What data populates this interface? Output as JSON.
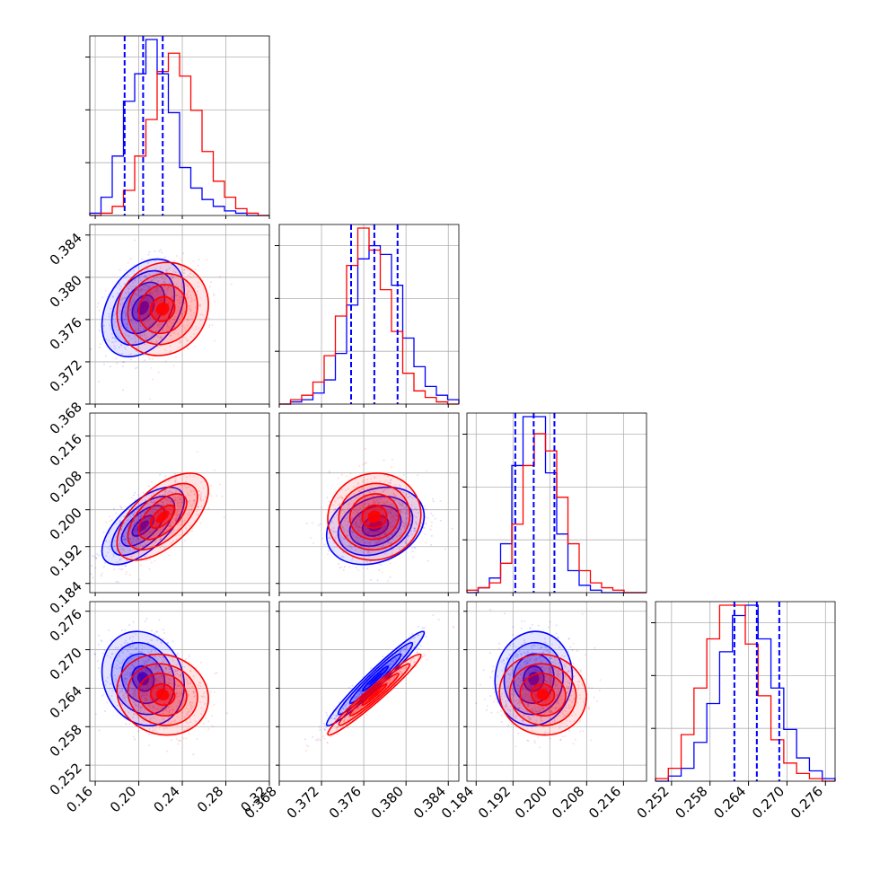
{
  "chart_data": {
    "type": "corner",
    "title": "",
    "grid": true,
    "colors": {
      "series_a": "#0000ff",
      "series_b": "#ff0000",
      "quantile_line": "#0000ff"
    },
    "series": [
      {
        "name": "",
        "color": "#0000ff"
      },
      {
        "name": "",
        "color": "#ff0000"
      }
    ],
    "parameters": [
      {
        "ticks": [
          0.16,
          0.2,
          0.24,
          0.28,
          0.32
        ],
        "tick_labels": [
          "0.16",
          "0.20",
          "0.24",
          "0.28",
          "0.32"
        ],
        "range": [
          0.155,
          0.32
        ],
        "quantiles": [
          0.187,
          0.204,
          0.222
        ],
        "hist_a": [
          1,
          8,
          26,
          50,
          62,
          77,
          62,
          45,
          21,
          12,
          7,
          4,
          2,
          1,
          0,
          0
        ],
        "hist_b": [
          0,
          1,
          4,
          11,
          26,
          42,
          63,
          71,
          61,
          46,
          28,
          15,
          8,
          3,
          1,
          0
        ]
      },
      {
        "ticks": [
          0.368,
          0.372,
          0.376,
          0.38,
          0.384
        ],
        "tick_labels": [
          "0.368",
          "0.372",
          "0.376",
          "0.380",
          "0.384"
        ],
        "range": [
          0.368,
          0.385
        ],
        "quantiles": [
          0.3748,
          0.377,
          0.3792
        ],
        "hist_a": [
          0,
          1,
          2,
          5,
          11,
          23,
          45,
          66,
          72,
          68,
          54,
          30,
          17,
          8,
          4,
          2
        ],
        "hist_b": [
          0,
          2,
          4,
          10,
          22,
          40,
          63,
          80,
          70,
          52,
          33,
          14,
          6,
          3,
          1,
          0
        ]
      },
      {
        "ticks": [
          0.184,
          0.192,
          0.2,
          0.208,
          0.216
        ],
        "tick_labels": [
          "0.184",
          "0.192",
          "0.200",
          "0.208",
          "0.216"
        ],
        "range": [
          0.182,
          0.221
        ],
        "quantiles": [
          0.1925,
          0.1965,
          0.201
        ],
        "hist_a": [
          0,
          2,
          6,
          20,
          52,
          72,
          72,
          49,
          24,
          9,
          3,
          1,
          0,
          0,
          0,
          0
        ],
        "hist_b": [
          1,
          2,
          4,
          12,
          28,
          52,
          65,
          58,
          39,
          20,
          9,
          4,
          2,
          1,
          0,
          0
        ]
      },
      {
        "ticks": [
          0.252,
          0.258,
          0.264,
          0.27,
          0.276
        ],
        "tick_labels": [
          "0.252",
          "0.258",
          "0.264",
          "0.270",
          "0.276"
        ],
        "range": [
          0.2495,
          0.2775
        ],
        "quantiles": [
          0.2618,
          0.2653,
          0.2688
        ],
        "hist_a": [
          0,
          2,
          5,
          15,
          30,
          50,
          64,
          68,
          55,
          36,
          20,
          9,
          4,
          1
        ],
        "hist_b": [
          1,
          5,
          18,
          36,
          55,
          68,
          68,
          53,
          33,
          16,
          7,
          3,
          1,
          0
        ]
      }
    ],
    "pairs": [
      {
        "x": 0,
        "y": 1,
        "mean_a": [
          0.204,
          0.3771
        ],
        "mean_b": [
          0.222,
          0.377
        ],
        "sd_a": [
          0.018,
          0.0022
        ],
        "sd_b": [
          0.02,
          0.0021
        ],
        "corr_a": 0.35,
        "corr_b": 0.1
      },
      {
        "x": 0,
        "y": 2,
        "mean_a": [
          0.204,
          0.1965
        ],
        "mean_b": [
          0.222,
          0.1985
        ],
        "sd_a": [
          0.018,
          0.004
        ],
        "sd_b": [
          0.02,
          0.0045
        ],
        "corr_a": 0.65,
        "corr_b": 0.6
      },
      {
        "x": 1,
        "y": 2,
        "mean_a": [
          0.3771,
          0.1965
        ],
        "mean_b": [
          0.377,
          0.1985
        ],
        "sd_a": [
          0.0022,
          0.004
        ],
        "sd_b": [
          0.0021,
          0.0045
        ],
        "corr_a": 0.25,
        "corr_b": 0.05
      },
      {
        "x": 0,
        "y": 3,
        "mean_a": [
          0.204,
          0.2655
        ],
        "mean_b": [
          0.222,
          0.263
        ],
        "sd_a": [
          0.018,
          0.0035
        ],
        "sd_b": [
          0.02,
          0.003
        ],
        "corr_a": -0.15,
        "corr_b": -0.1
      },
      {
        "x": 1,
        "y": 3,
        "mean_a": [
          0.3771,
          0.2655
        ],
        "mean_b": [
          0.377,
          0.263
        ],
        "sd_a": [
          0.0022,
          0.0035
        ],
        "sd_b": [
          0.0021,
          0.003
        ],
        "corr_a": 0.97,
        "corr_b": 0.97
      },
      {
        "x": 2,
        "y": 3,
        "mean_a": [
          0.1965,
          0.2655
        ],
        "mean_b": [
          0.1985,
          0.263
        ],
        "sd_a": [
          0.004,
          0.0035
        ],
        "sd_b": [
          0.0045,
          0.003
        ],
        "corr_a": 0.05,
        "corr_b": -0.05
      }
    ]
  }
}
